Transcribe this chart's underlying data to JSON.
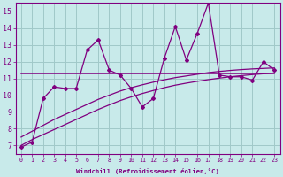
{
  "x": [
    0,
    1,
    2,
    3,
    4,
    5,
    6,
    7,
    8,
    9,
    10,
    11,
    12,
    13,
    14,
    15,
    16,
    17,
    18,
    19,
    20,
    21,
    22,
    23
  ],
  "main_line": [
    6.9,
    7.2,
    9.8,
    10.5,
    10.4,
    10.4,
    12.7,
    13.3,
    11.5,
    11.2,
    10.4,
    9.3,
    9.8,
    12.2,
    14.1,
    12.1,
    13.7,
    15.5,
    11.2,
    11.1,
    11.1,
    10.9,
    12.0,
    11.5
  ],
  "horizontal": [
    11.3,
    11.3,
    11.3,
    11.3,
    11.3,
    11.3,
    11.3,
    11.3,
    11.3,
    11.3,
    11.3,
    11.3,
    11.3,
    11.3,
    11.3,
    11.3,
    11.3,
    11.3,
    11.3,
    11.3,
    11.3,
    11.3,
    11.3,
    11.3
  ],
  "reg_upper": [
    7.5,
    7.85,
    8.2,
    8.55,
    8.85,
    9.15,
    9.45,
    9.75,
    10.0,
    10.25,
    10.45,
    10.62,
    10.78,
    10.92,
    11.05,
    11.15,
    11.25,
    11.35,
    11.42,
    11.48,
    11.53,
    11.57,
    11.6,
    11.63
  ],
  "reg_lower": [
    7.0,
    7.35,
    7.65,
    7.95,
    8.25,
    8.55,
    8.85,
    9.15,
    9.42,
    9.68,
    9.9,
    10.1,
    10.28,
    10.45,
    10.6,
    10.72,
    10.83,
    10.93,
    11.02,
    11.1,
    11.17,
    11.23,
    11.28,
    11.33
  ],
  "line_color": "#800080",
  "bg_color": "#c8eaea",
  "grid_color": "#a0c8c8",
  "xlabel": "Windchill (Refroidissement éolien,°C)",
  "ylim": [
    6.5,
    15.5
  ],
  "xlim": [
    -0.5,
    23.5
  ],
  "yticks": [
    7,
    8,
    9,
    10,
    11,
    12,
    13,
    14,
    15
  ],
  "xticks": [
    0,
    1,
    2,
    3,
    4,
    5,
    6,
    7,
    8,
    9,
    10,
    11,
    12,
    13,
    14,
    15,
    16,
    17,
    18,
    19,
    20,
    21,
    22,
    23
  ]
}
